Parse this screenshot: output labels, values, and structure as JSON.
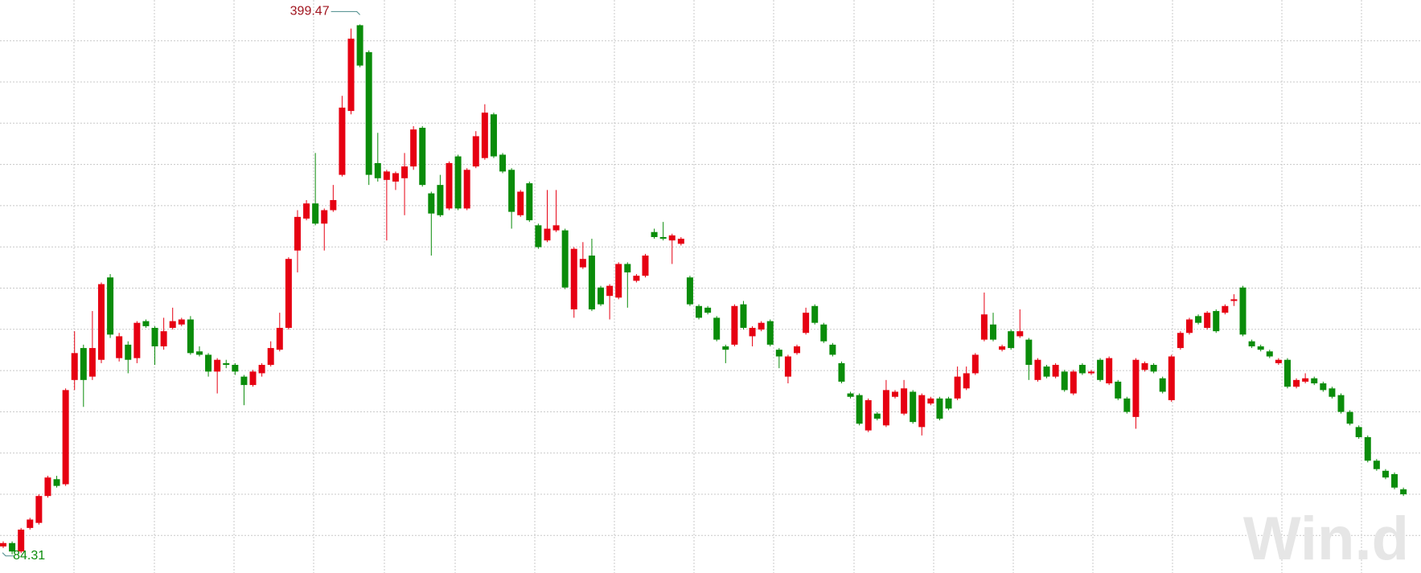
{
  "chart_data": {
    "type": "candlestick",
    "up_color": "#e60012",
    "down_color": "#0a8c0a",
    "ylim": [
      73.2,
      414
    ],
    "max_annotation": 399.47,
    "min_annotation": 84.31,
    "watermark": "Win.d",
    "open": [
      89,
      91,
      86,
      100,
      103,
      119,
      129,
      126,
      188,
      207,
      190,
      200,
      249,
      201,
      209,
      201,
      223,
      219,
      208,
      219,
      221,
      224,
      205,
      203,
      193,
      198,
      197,
      190,
      185,
      192,
      197,
      206,
      219,
      265,
      284,
      293,
      281,
      289,
      310,
      348,
      399,
      383,
      317,
      307,
      306,
      308,
      315,
      338,
      299,
      304,
      290,
      321,
      290,
      315,
      320,
      346,
      322,
      313,
      286,
      305,
      280,
      271,
      277,
      277,
      230,
      255,
      262,
      243,
      238,
      237,
      257,
      247,
      250,
      276,
      273,
      271,
      269,
      249,
      232,
      231,
      225,
      208,
      209,
      233,
      214,
      218,
      223,
      206,
      190,
      204,
      216,
      232,
      221,
      209,
      198,
      180,
      179,
      158,
      168,
      161,
      178,
      168,
      181,
      160,
      174,
      177,
      177,
      177,
      183,
      192,
      212,
      221,
      206,
      217,
      214,
      212,
      188,
      196,
      190,
      193,
      180,
      197,
      192,
      200,
      186,
      187,
      177,
      166,
      194,
      197,
      189,
      176,
      207,
      216,
      226,
      219,
      229,
      228,
      235,
      243,
      211,
      208,
      205,
      198,
      200,
      184,
      187,
      189,
      186,
      183,
      179,
      169,
      160,
      154,
      140,
      134,
      132,
      123
    ],
    "high": [
      92,
      92,
      100,
      106,
      120,
      131,
      131,
      183,
      217,
      209,
      229,
      246,
      251,
      216,
      211,
      223,
      224,
      220,
      225,
      231,
      225,
      226,
      208,
      204,
      201,
      200,
      198,
      191,
      194,
      198,
      211,
      228,
      261,
      289,
      295,
      323,
      290,
      304,
      357,
      397,
      399.47,
      384,
      335,
      313,
      312,
      323,
      339,
      339,
      300,
      310,
      318,
      322,
      314,
      336,
      352,
      347,
      323,
      314,
      301,
      306,
      281,
      301,
      301,
      278,
      267,
      270,
      272,
      244,
      245,
      258,
      258,
      251,
      263,
      278,
      282,
      275,
      273,
      250,
      233,
      232,
      226,
      209,
      233,
      235,
      220,
      223,
      224,
      207,
      203,
      209,
      231,
      233,
      222,
      210,
      199,
      181,
      180,
      177,
      169,
      188,
      182,
      188,
      182,
      180,
      178,
      178,
      178,
      196,
      196,
      204,
      240,
      228,
      209,
      218,
      230,
      213,
      201,
      197,
      198,
      194,
      194,
      198,
      194,
      201,
      202,
      188,
      178,
      201,
      199,
      198,
      190,
      203,
      217,
      225,
      227,
      229,
      230,
      233,
      239,
      244,
      212,
      209,
      206,
      201,
      201,
      189,
      192,
      190,
      187,
      184,
      180,
      170,
      161,
      155,
      141,
      135,
      133,
      124
    ],
    "low": [
      88,
      84.31,
      85,
      99,
      102,
      118,
      124,
      125,
      182,
      172,
      188,
      198,
      213,
      199,
      192,
      198,
      219,
      197,
      206,
      218,
      220,
      203,
      202,
      190,
      180,
      195,
      191,
      173,
      184,
      190,
      196,
      205,
      218,
      252,
      283,
      280,
      265,
      288,
      309,
      346,
      374,
      304,
      306,
      271,
      301,
      286,
      313,
      303,
      262,
      285,
      289,
      289,
      289,
      314,
      319,
      320,
      311,
      278,
      285,
      282,
      266,
      270,
      276,
      242,
      225,
      254,
      229,
      232,
      224,
      236,
      231,
      246,
      249,
      272,
      271,
      257,
      268,
      232,
      224,
      227,
      211,
      198,
      208,
      218,
      208,
      217,
      208,
      195,
      186,
      203,
      215,
      221,
      210,
      202,
      186,
      177,
      161,
      157,
      164,
      160,
      177,
      167,
      162,
      155,
      173,
      164,
      170,
      176,
      182,
      191,
      211,
      211,
      205,
      206,
      213,
      188,
      187,
      189,
      189,
      181,
      179,
      191,
      191,
      187,
      185,
      176,
      168,
      159,
      193,
      192,
      180,
      175,
      206,
      215,
      221,
      218,
      216,
      227,
      232,
      214,
      207,
      205,
      201,
      197,
      183,
      183,
      186,
      185,
      181,
      177,
      168,
      161,
      153,
      139,
      134,
      129,
      123,
      119
    ],
    "close": [
      91,
      86,
      99,
      105,
      119,
      130,
      125,
      182,
      204,
      188,
      207,
      245,
      215,
      214,
      200,
      222,
      220,
      208,
      217,
      223,
      224,
      204,
      203,
      193,
      200,
      197,
      193,
      185,
      193,
      197,
      207,
      219,
      260,
      285,
      293,
      281,
      289,
      295,
      350,
      391,
      375,
      310,
      308,
      312,
      311,
      315,
      337,
      304,
      287,
      286,
      317,
      290,
      313,
      333,
      347,
      321,
      312,
      288,
      300,
      283,
      267,
      278,
      280,
      243,
      266,
      260,
      230,
      233,
      244,
      257,
      252,
      250,
      262,
      273,
      272,
      274,
      272,
      233,
      225,
      228,
      212,
      206,
      232,
      219,
      219,
      222,
      209,
      202,
      202,
      208,
      228,
      222,
      211,
      203,
      187,
      178,
      162,
      176,
      165,
      182,
      181,
      183,
      163,
      179,
      177,
      165,
      171,
      190,
      192,
      203,
      227,
      212,
      208,
      207,
      217,
      197,
      200,
      190,
      197,
      182,
      193,
      192,
      193,
      188,
      201,
      177,
      169,
      200,
      198,
      193,
      181,
      202,
      216,
      224,
      222,
      228,
      217,
      232,
      236,
      215,
      208,
      206,
      202,
      200,
      184,
      188,
      189,
      186,
      182,
      178,
      169,
      162,
      154,
      140,
      135,
      130,
      124,
      120
    ]
  }
}
